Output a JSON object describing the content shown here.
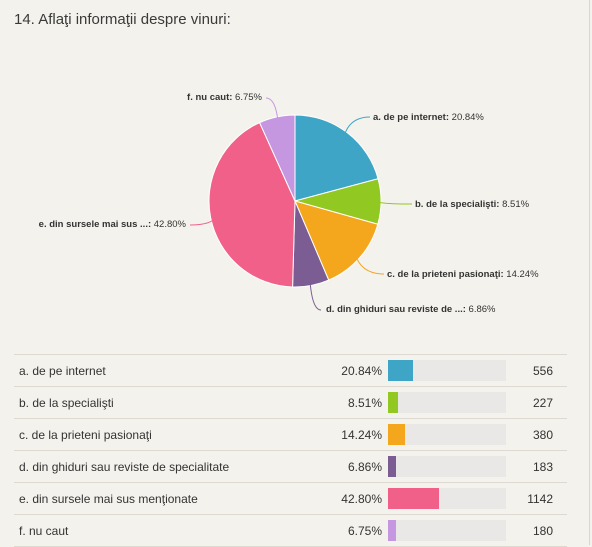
{
  "question": {
    "title": "14. Aflaţi informaţii despre vinuri:"
  },
  "chart_data": {
    "type": "pie",
    "slices": [
      {
        "key": "a. de pe internet",
        "label_short": "a. de pe internet",
        "label_full": "a. de pe internet",
        "percent": 20.84,
        "percent_text": "20.84%",
        "count": 556,
        "color": "#3fa5c7"
      },
      {
        "key": "b. de la specialişti",
        "label_short": "b. de la specialişti",
        "label_full": "b. de la specialişti",
        "percent": 8.51,
        "percent_text": "8.51%",
        "count": 227,
        "color": "#92c822"
      },
      {
        "key": "c. de la prieteni pasionaţi",
        "label_short": "c. de la prieteni pasionaţi",
        "label_full": "c. de la prieteni pasionaţi",
        "percent": 14.24,
        "percent_text": "14.24%",
        "count": 380,
        "color": "#f4a61c"
      },
      {
        "key": "d. din ghiduri sau reviste",
        "label_short": "d. din ghiduri sau reviste de ...",
        "label_full": "d. din ghiduri sau reviste de specialitate",
        "percent": 6.86,
        "percent_text": "6.86%",
        "count": 183,
        "color": "#7b5c93"
      },
      {
        "key": "e. din sursele mai sus",
        "label_short": "e. din sursele mai sus ...",
        "label_full": "e. din sursele mai sus menţionate",
        "percent": 42.8,
        "percent_text": "42.80%",
        "count": 1142,
        "color": "#f06088"
      },
      {
        "key": "f. nu caut",
        "label_short": "f. nu caut",
        "label_full": "f. nu caut",
        "percent": 6.75,
        "percent_text": "6.75%",
        "count": 180,
        "color": "#c597e0"
      }
    ]
  }
}
